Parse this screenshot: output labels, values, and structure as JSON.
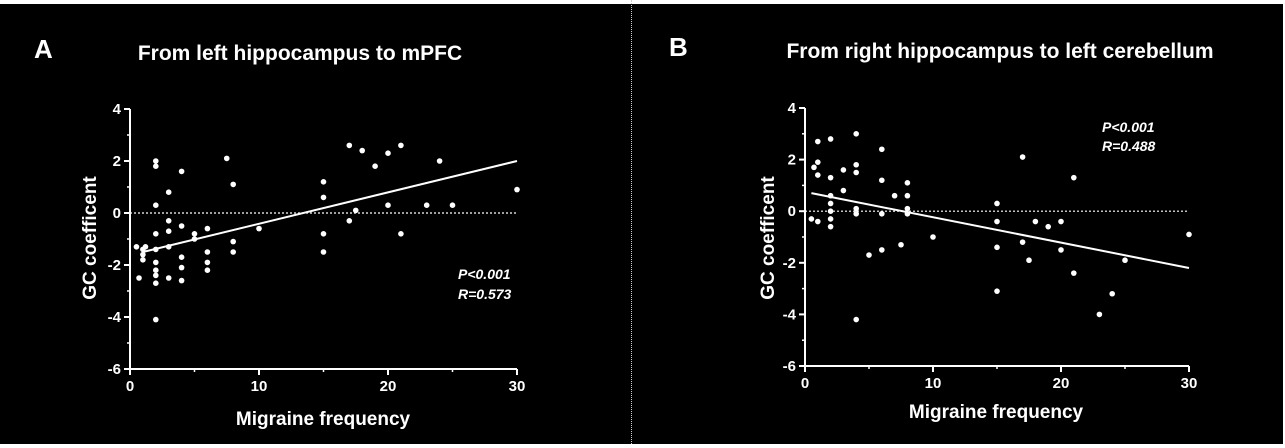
{
  "chart_data": [
    {
      "type": "scatter",
      "panel_label": "A",
      "title": "From left hippocampus to mPFC",
      "xlabel": "Migraine frequency",
      "ylabel": "GC coefficent",
      "xlim": [
        0,
        30
      ],
      "ylim": [
        -6,
        4
      ],
      "xticks": [
        "0",
        "10",
        "20",
        "30"
      ],
      "yticks": [
        "-6",
        "-4",
        "-2",
        "0",
        "2",
        "4"
      ],
      "reference_line_y": 0,
      "stats": {
        "p": "P<0.001",
        "r": "R=0.573"
      },
      "trend_line": {
        "x": [
          1,
          30
        ],
        "y": [
          -1.5,
          2.0
        ]
      },
      "points": [
        {
          "x": 0.5,
          "y": -1.3
        },
        {
          "x": 0.7,
          "y": -2.5
        },
        {
          "x": 1,
          "y": -1.4
        },
        {
          "x": 1,
          "y": -1.6
        },
        {
          "x": 1,
          "y": -1.8
        },
        {
          "x": 1.2,
          "y": -1.3
        },
        {
          "x": 2,
          "y": 2.0
        },
        {
          "x": 2,
          "y": 1.8
        },
        {
          "x": 2,
          "y": 0.3
        },
        {
          "x": 2,
          "y": -0.8
        },
        {
          "x": 2,
          "y": -1.4
        },
        {
          "x": 2,
          "y": -1.9
        },
        {
          "x": 2,
          "y": -2.2
        },
        {
          "x": 2,
          "y": -2.4
        },
        {
          "x": 2,
          "y": -2.7
        },
        {
          "x": 2,
          "y": -4.1
        },
        {
          "x": 3,
          "y": 0.8
        },
        {
          "x": 3,
          "y": -0.3
        },
        {
          "x": 3,
          "y": -0.7
        },
        {
          "x": 3,
          "y": -1.3
        },
        {
          "x": 3,
          "y": -2.5
        },
        {
          "x": 4,
          "y": 1.6
        },
        {
          "x": 4,
          "y": -0.5
        },
        {
          "x": 4,
          "y": -1.7
        },
        {
          "x": 4,
          "y": -2.1
        },
        {
          "x": 4,
          "y": -2.6
        },
        {
          "x": 5,
          "y": -0.8
        },
        {
          "x": 5,
          "y": -1.0
        },
        {
          "x": 6,
          "y": -0.6
        },
        {
          "x": 6,
          "y": -1.5
        },
        {
          "x": 6,
          "y": -1.9
        },
        {
          "x": 6,
          "y": -2.2
        },
        {
          "x": 7.5,
          "y": 2.1
        },
        {
          "x": 8,
          "y": 1.1
        },
        {
          "x": 8,
          "y": -1.1
        },
        {
          "x": 8,
          "y": -1.5
        },
        {
          "x": 10,
          "y": -0.6
        },
        {
          "x": 15,
          "y": 1.2
        },
        {
          "x": 15,
          "y": 0.6
        },
        {
          "x": 15,
          "y": -0.8
        },
        {
          "x": 15,
          "y": -1.5
        },
        {
          "x": 17,
          "y": 2.6
        },
        {
          "x": 17,
          "y": -0.3
        },
        {
          "x": 17.5,
          "y": 0.1
        },
        {
          "x": 18,
          "y": 2.4
        },
        {
          "x": 19,
          "y": 1.8
        },
        {
          "x": 20,
          "y": 2.3
        },
        {
          "x": 20,
          "y": 0.3
        },
        {
          "x": 21,
          "y": 2.6
        },
        {
          "x": 21,
          "y": -0.8
        },
        {
          "x": 23,
          "y": 0.3
        },
        {
          "x": 24,
          "y": 2.0
        },
        {
          "x": 25,
          "y": 0.3
        },
        {
          "x": 30,
          "y": 0.9
        }
      ]
    },
    {
      "type": "scatter",
      "panel_label": "B",
      "title": "From right hippocampus to left cerebellum",
      "xlabel": "Migraine frequency",
      "ylabel": "GC coefficent",
      "xlim": [
        0,
        30
      ],
      "ylim": [
        -6,
        4
      ],
      "xticks": [
        "0",
        "10",
        "20",
        "30"
      ],
      "yticks": [
        "-6",
        "-4",
        "-2",
        "0",
        "2",
        "4"
      ],
      "reference_line_y": 0,
      "stats": {
        "p": "P<0.001",
        "r": "R=0.488"
      },
      "trend_line": {
        "x": [
          0.5,
          30
        ],
        "y": [
          0.7,
          -2.2
        ]
      },
      "points": [
        {
          "x": 0.5,
          "y": -0.3
        },
        {
          "x": 0.7,
          "y": 1.7
        },
        {
          "x": 1,
          "y": 2.7
        },
        {
          "x": 1,
          "y": 1.9
        },
        {
          "x": 1,
          "y": 1.4
        },
        {
          "x": 1,
          "y": -0.4
        },
        {
          "x": 2,
          "y": 2.8
        },
        {
          "x": 2,
          "y": 1.3
        },
        {
          "x": 2,
          "y": 0.6
        },
        {
          "x": 2,
          "y": 0.3
        },
        {
          "x": 2,
          "y": 0.0
        },
        {
          "x": 2,
          "y": -0.3
        },
        {
          "x": 2,
          "y": -0.6
        },
        {
          "x": 3,
          "y": 1.6
        },
        {
          "x": 3,
          "y": 0.8
        },
        {
          "x": 4,
          "y": 3.0
        },
        {
          "x": 4,
          "y": 1.8
        },
        {
          "x": 4,
          "y": 1.5
        },
        {
          "x": 4,
          "y": 0.1
        },
        {
          "x": 4,
          "y": -0.1
        },
        {
          "x": 4,
          "y": -4.2
        },
        {
          "x": 5,
          "y": -1.7
        },
        {
          "x": 6,
          "y": 2.4
        },
        {
          "x": 6,
          "y": 1.2
        },
        {
          "x": 6,
          "y": -0.1
        },
        {
          "x": 6,
          "y": -1.5
        },
        {
          "x": 7,
          "y": 0.6
        },
        {
          "x": 7.5,
          "y": -1.3
        },
        {
          "x": 8,
          "y": 1.1
        },
        {
          "x": 8,
          "y": 0.6
        },
        {
          "x": 8,
          "y": 0.1
        },
        {
          "x": 8,
          "y": -0.1
        },
        {
          "x": 10,
          "y": -1.0
        },
        {
          "x": 15,
          "y": 0.3
        },
        {
          "x": 15,
          "y": -0.4
        },
        {
          "x": 15,
          "y": -1.4
        },
        {
          "x": 15,
          "y": -3.1
        },
        {
          "x": 17,
          "y": 2.1
        },
        {
          "x": 17,
          "y": -1.2
        },
        {
          "x": 17.5,
          "y": -1.9
        },
        {
          "x": 18,
          "y": -0.4
        },
        {
          "x": 19,
          "y": -0.6
        },
        {
          "x": 20,
          "y": -0.4
        },
        {
          "x": 20,
          "y": -1.5
        },
        {
          "x": 21,
          "y": 1.3
        },
        {
          "x": 21,
          "y": -2.4
        },
        {
          "x": 23,
          "y": -4.0
        },
        {
          "x": 24,
          "y": -3.2
        },
        {
          "x": 25,
          "y": -1.9
        },
        {
          "x": 30,
          "y": -0.9
        }
      ]
    }
  ]
}
